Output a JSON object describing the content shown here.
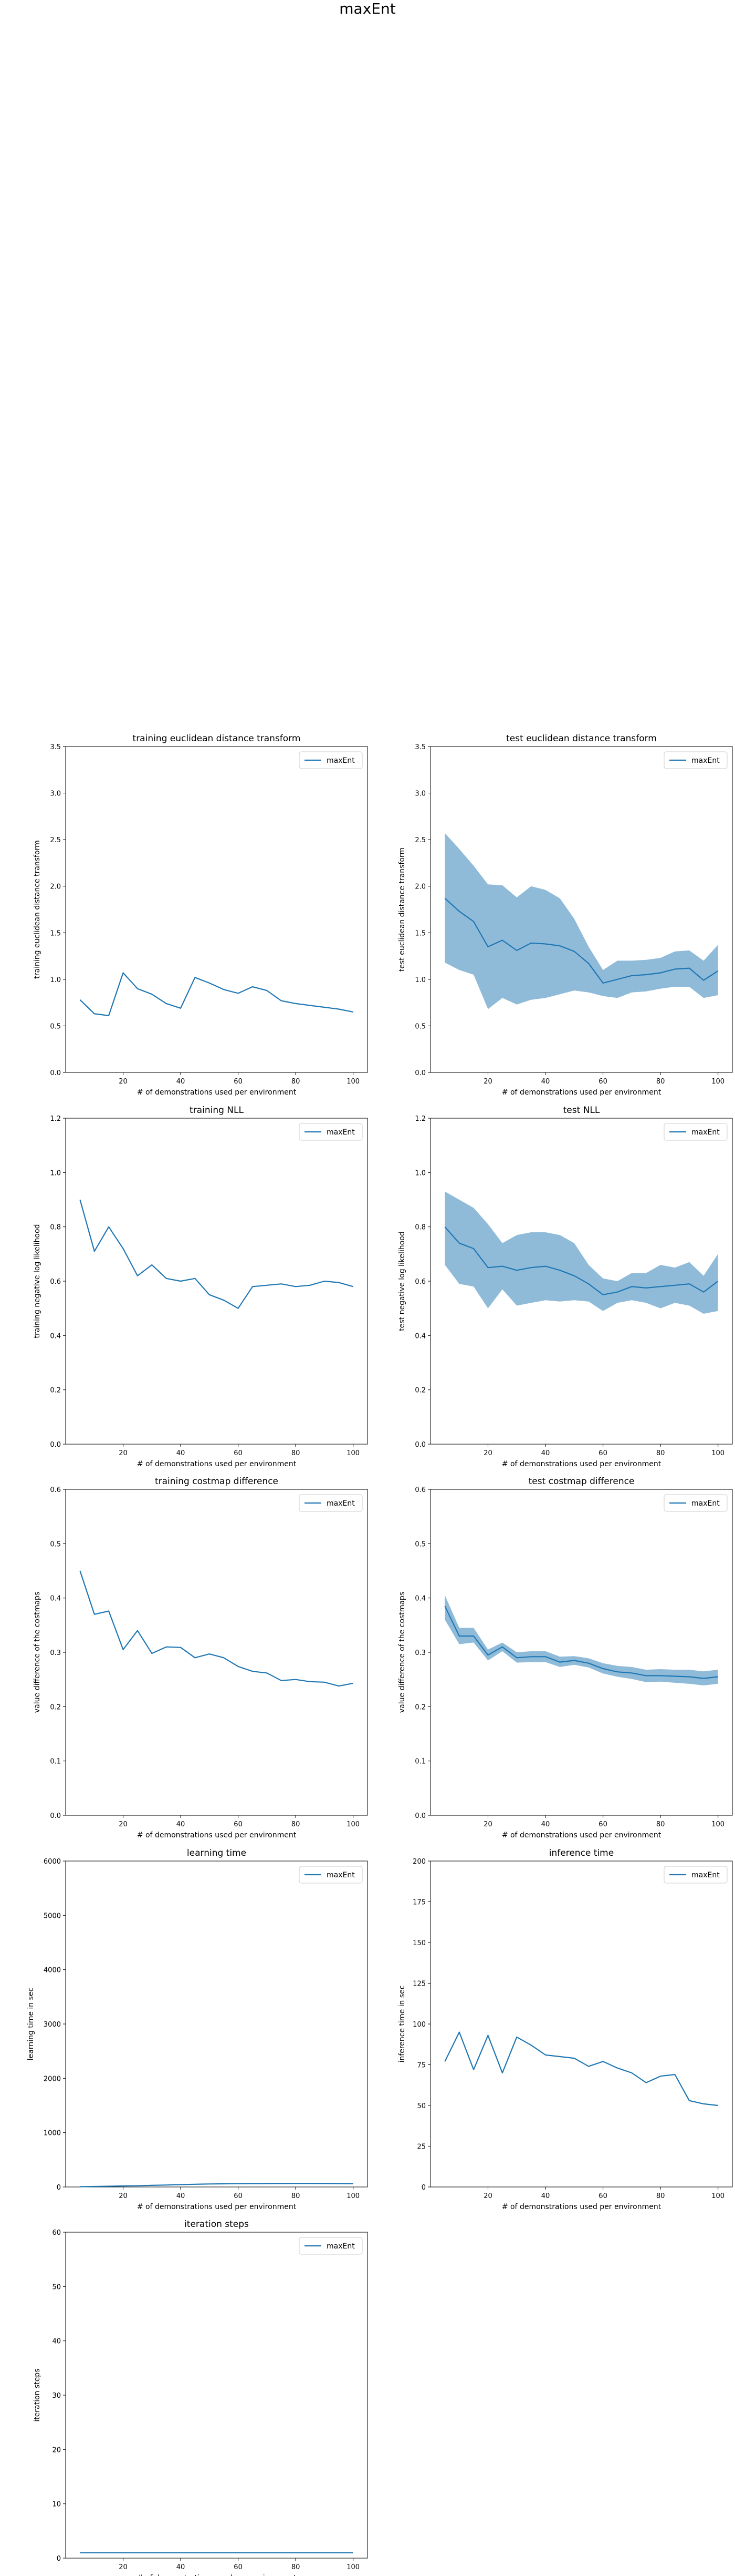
{
  "suptitle": "maxEnt",
  "chart_data": [
    {
      "type": "line",
      "title": "training euclidean distance transform",
      "xlabel": "# of demonstrations used per environment",
      "ylabel": "training euclidean distance transform",
      "xlim": [
        0,
        105
      ],
      "ylim": [
        0,
        3.5
      ],
      "xticks": [
        20,
        40,
        60,
        80,
        100
      ],
      "yticks": [
        0.0,
        0.5,
        1.0,
        1.5,
        2.0,
        2.5,
        3.0,
        3.5
      ],
      "ytick_decimals": 1,
      "legend": "top-right",
      "series": [
        {
          "name": "maxEnt",
          "x": [
            5,
            10,
            15,
            20,
            25,
            30,
            35,
            40,
            45,
            50,
            55,
            60,
            65,
            70,
            75,
            80,
            85,
            90,
            95,
            100
          ],
          "y": [
            0.78,
            0.63,
            0.61,
            1.07,
            0.9,
            0.84,
            0.74,
            0.69,
            1.02,
            0.96,
            0.89,
            0.85,
            0.92,
            0.88,
            0.77,
            0.74,
            0.72,
            0.7,
            0.68,
            0.65
          ]
        }
      ]
    },
    {
      "type": "line",
      "title": "test euclidean distance transform",
      "xlabel": "# of demonstrations used per environment",
      "ylabel": "test euclidean distance transform",
      "xlim": [
        0,
        105
      ],
      "ylim": [
        0,
        3.5
      ],
      "xticks": [
        20,
        40,
        60,
        80,
        100
      ],
      "yticks": [
        0.0,
        0.5,
        1.0,
        1.5,
        2.0,
        2.5,
        3.0,
        3.5
      ],
      "ytick_decimals": 1,
      "legend": "top-right",
      "series": [
        {
          "name": "maxEnt",
          "x": [
            5,
            10,
            15,
            20,
            25,
            30,
            35,
            40,
            45,
            50,
            55,
            60,
            65,
            70,
            75,
            80,
            85,
            90,
            95,
            100
          ],
          "y": [
            1.87,
            1.73,
            1.62,
            1.35,
            1.42,
            1.31,
            1.39,
            1.38,
            1.36,
            1.3,
            1.17,
            0.96,
            1.0,
            1.04,
            1.05,
            1.07,
            1.11,
            1.12,
            0.99,
            1.09
          ],
          "lower": [
            1.18,
            1.1,
            1.05,
            0.68,
            0.8,
            0.73,
            0.78,
            0.8,
            0.84,
            0.88,
            0.86,
            0.82,
            0.8,
            0.86,
            0.87,
            0.9,
            0.92,
            0.92,
            0.8,
            0.83
          ],
          "upper": [
            2.57,
            2.4,
            2.22,
            2.02,
            2.01,
            1.88,
            2.0,
            1.96,
            1.87,
            1.65,
            1.35,
            1.1,
            1.2,
            1.2,
            1.21,
            1.23,
            1.3,
            1.31,
            1.2,
            1.37
          ]
        }
      ]
    },
    {
      "type": "line",
      "title": "training NLL",
      "xlabel": "# of demonstrations used per environment",
      "ylabel": "training negative log likelihood",
      "xlim": [
        0,
        105
      ],
      "ylim": [
        0,
        1.2
      ],
      "xticks": [
        20,
        40,
        60,
        80,
        100
      ],
      "yticks": [
        0.0,
        0.2,
        0.4,
        0.6,
        0.8,
        1.0,
        1.2
      ],
      "ytick_decimals": 1,
      "legend": "top-right",
      "series": [
        {
          "name": "maxEnt",
          "x": [
            5,
            10,
            15,
            20,
            25,
            30,
            35,
            40,
            45,
            50,
            55,
            60,
            65,
            70,
            75,
            80,
            85,
            90,
            95,
            100
          ],
          "y": [
            0.9,
            0.71,
            0.8,
            0.72,
            0.62,
            0.66,
            0.61,
            0.6,
            0.61,
            0.55,
            0.53,
            0.5,
            0.58,
            0.585,
            0.59,
            0.58,
            0.585,
            0.6,
            0.595,
            0.58
          ]
        }
      ]
    },
    {
      "type": "line",
      "title": "test NLL",
      "xlabel": "# of demonstrations used per environment",
      "ylabel": "test negative log likelihood",
      "xlim": [
        0,
        105
      ],
      "ylim": [
        0,
        1.2
      ],
      "xticks": [
        20,
        40,
        60,
        80,
        100
      ],
      "yticks": [
        0.0,
        0.2,
        0.4,
        0.6,
        0.8,
        1.0,
        1.2
      ],
      "ytick_decimals": 1,
      "legend": "top-right",
      "series": [
        {
          "name": "maxEnt",
          "x": [
            5,
            10,
            15,
            20,
            25,
            30,
            35,
            40,
            45,
            50,
            55,
            60,
            65,
            70,
            75,
            80,
            85,
            90,
            95,
            100
          ],
          "y": [
            0.8,
            0.74,
            0.72,
            0.65,
            0.655,
            0.64,
            0.65,
            0.655,
            0.64,
            0.62,
            0.59,
            0.55,
            0.56,
            0.58,
            0.575,
            0.58,
            0.585,
            0.59,
            0.56,
            0.6
          ],
          "lower": [
            0.66,
            0.59,
            0.58,
            0.5,
            0.57,
            0.51,
            0.52,
            0.53,
            0.525,
            0.53,
            0.525,
            0.49,
            0.52,
            0.53,
            0.52,
            0.5,
            0.52,
            0.51,
            0.48,
            0.49
          ],
          "upper": [
            0.93,
            0.9,
            0.87,
            0.81,
            0.74,
            0.77,
            0.78,
            0.78,
            0.77,
            0.74,
            0.66,
            0.61,
            0.6,
            0.63,
            0.63,
            0.66,
            0.65,
            0.67,
            0.62,
            0.7
          ]
        }
      ]
    },
    {
      "type": "line",
      "title": "training costmap difference",
      "xlabel": "# of demonstrations used per environment",
      "ylabel": "value difference of the costmaps",
      "xlim": [
        0,
        105
      ],
      "ylim": [
        0,
        0.6
      ],
      "xticks": [
        20,
        40,
        60,
        80,
        100
      ],
      "yticks": [
        0.0,
        0.1,
        0.2,
        0.3,
        0.4,
        0.5,
        0.6
      ],
      "ytick_decimals": 1,
      "legend": "top-right",
      "series": [
        {
          "name": "maxEnt",
          "x": [
            5,
            10,
            15,
            20,
            25,
            30,
            35,
            40,
            45,
            50,
            55,
            60,
            65,
            70,
            75,
            80,
            85,
            90,
            95,
            100
          ],
          "y": [
            0.45,
            0.37,
            0.376,
            0.305,
            0.34,
            0.298,
            0.31,
            0.309,
            0.29,
            0.297,
            0.29,
            0.274,
            0.265,
            0.262,
            0.248,
            0.25,
            0.246,
            0.245,
            0.238,
            0.243
          ]
        }
      ]
    },
    {
      "type": "line",
      "title": "test costmap difference",
      "xlabel": "# of demonstrations used per environment",
      "ylabel": "value difference of the costmaps",
      "xlim": [
        0,
        105
      ],
      "ylim": [
        0,
        0.6
      ],
      "xticks": [
        20,
        40,
        60,
        80,
        100
      ],
      "yticks": [
        0.0,
        0.1,
        0.2,
        0.3,
        0.4,
        0.5,
        0.6
      ],
      "ytick_decimals": 1,
      "legend": "top-right",
      "series": [
        {
          "name": "maxEnt",
          "x": [
            5,
            10,
            15,
            20,
            25,
            30,
            35,
            40,
            45,
            50,
            55,
            60,
            65,
            70,
            75,
            80,
            85,
            90,
            95,
            100
          ],
          "y": [
            0.385,
            0.33,
            0.33,
            0.295,
            0.31,
            0.29,
            0.292,
            0.292,
            0.282,
            0.285,
            0.28,
            0.27,
            0.264,
            0.262,
            0.257,
            0.257,
            0.256,
            0.255,
            0.252,
            0.255
          ],
          "lower": [
            0.36,
            0.315,
            0.318,
            0.285,
            0.302,
            0.281,
            0.282,
            0.282,
            0.273,
            0.277,
            0.272,
            0.261,
            0.255,
            0.251,
            0.245,
            0.246,
            0.244,
            0.242,
            0.239,
            0.242
          ],
          "upper": [
            0.405,
            0.345,
            0.345,
            0.305,
            0.318,
            0.3,
            0.302,
            0.302,
            0.292,
            0.293,
            0.289,
            0.28,
            0.275,
            0.273,
            0.268,
            0.269,
            0.268,
            0.268,
            0.265,
            0.268
          ]
        }
      ]
    },
    {
      "type": "line",
      "title": "learning time",
      "xlabel": "# of demonstrations used per environment",
      "ylabel": "learning time in sec",
      "xlim": [
        0,
        105
      ],
      "ylim": [
        0,
        6000
      ],
      "xticks": [
        20,
        40,
        60,
        80,
        100
      ],
      "yticks": [
        0,
        1000,
        2000,
        3000,
        4000,
        5000,
        6000
      ],
      "ytick_decimals": 0,
      "legend": "top-right",
      "series": [
        {
          "name": "maxEnt",
          "x": [
            5,
            10,
            15,
            20,
            25,
            30,
            35,
            40,
            45,
            50,
            55,
            60,
            65,
            70,
            75,
            80,
            85,
            90,
            95,
            100
          ],
          "y": [
            5,
            10,
            14,
            18,
            22,
            30,
            36,
            44,
            50,
            55,
            58,
            60,
            62,
            63,
            64,
            65,
            65,
            64,
            62,
            60
          ]
        }
      ]
    },
    {
      "type": "line",
      "title": "inference time",
      "xlabel": "# of demonstrations used per environment",
      "ylabel": "inference time in sec",
      "xlim": [
        0,
        105
      ],
      "ylim": [
        0,
        200
      ],
      "xticks": [
        20,
        40,
        60,
        80,
        100
      ],
      "yticks": [
        0,
        25,
        50,
        75,
        100,
        125,
        150,
        175,
        200
      ],
      "ytick_decimals": 0,
      "legend": "top-right",
      "series": [
        {
          "name": "maxEnt",
          "x": [
            5,
            10,
            15,
            20,
            25,
            30,
            35,
            40,
            45,
            50,
            55,
            60,
            65,
            70,
            75,
            80,
            85,
            90,
            95,
            100
          ],
          "y": [
            77,
            95,
            72,
            93,
            70,
            92,
            87,
            81,
            80,
            79,
            74,
            77,
            73,
            70,
            64,
            68,
            69,
            53,
            51,
            50
          ]
        }
      ]
    },
    {
      "type": "line",
      "title": "iteration steps",
      "xlabel": "# of demonstrations used per environment",
      "ylabel": "iteration steps",
      "xlim": [
        0,
        105
      ],
      "ylim": [
        0,
        60
      ],
      "xticks": [
        20,
        40,
        60,
        80,
        100
      ],
      "yticks": [
        0,
        10,
        20,
        30,
        40,
        50,
        60
      ],
      "ytick_decimals": 0,
      "legend": "top-right",
      "series": [
        {
          "name": "maxEnt",
          "x": [
            5,
            10,
            15,
            20,
            25,
            30,
            35,
            40,
            45,
            50,
            55,
            60,
            65,
            70,
            75,
            80,
            85,
            90,
            95,
            100
          ],
          "y": [
            1,
            1,
            1,
            1,
            1,
            1,
            1,
            1,
            1,
            1,
            1,
            1,
            1,
            1,
            1,
            1,
            1,
            1,
            1,
            1
          ]
        }
      ]
    }
  ],
  "colors": {
    "line": "#1f77b4",
    "band": "#1f77b4"
  }
}
